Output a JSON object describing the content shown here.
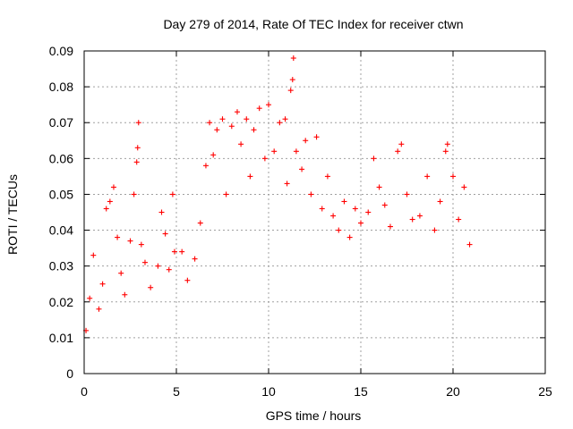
{
  "chart_data": {
    "type": "scatter",
    "title": "Day 279 of 2014, Rate Of TEC Index for receiver ctwn",
    "xlabel": "GPS time / hours",
    "ylabel": "ROTI / TECUs",
    "xlim": [
      0,
      25
    ],
    "ylim": [
      0,
      0.09
    ],
    "xticks": [
      "0",
      "5",
      "10",
      "15",
      "20",
      "25"
    ],
    "yticks": [
      "0",
      "0.01",
      "0.02",
      "0.03",
      "0.04",
      "0.05",
      "0.06",
      "0.07",
      "0.08",
      "0.09"
    ],
    "grid": true,
    "marker": "+",
    "colors": {
      "series": "#ff0000"
    },
    "series": [
      {
        "points": [
          [
            0.1,
            0.012
          ],
          [
            0.3,
            0.021
          ],
          [
            0.5,
            0.033
          ],
          [
            0.8,
            0.018
          ],
          [
            1.0,
            0.025
          ],
          [
            1.2,
            0.046
          ],
          [
            1.4,
            0.048
          ],
          [
            1.6,
            0.052
          ],
          [
            1.8,
            0.038
          ],
          [
            2.0,
            0.028
          ],
          [
            2.2,
            0.022
          ],
          [
            2.5,
            0.037
          ],
          [
            2.7,
            0.05
          ],
          [
            2.85,
            0.059
          ],
          [
            2.9,
            0.063
          ],
          [
            2.95,
            0.07
          ],
          [
            3.1,
            0.036
          ],
          [
            3.3,
            0.031
          ],
          [
            3.6,
            0.024
          ],
          [
            4.0,
            0.03
          ],
          [
            4.2,
            0.045
          ],
          [
            4.4,
            0.039
          ],
          [
            4.6,
            0.029
          ],
          [
            4.8,
            0.05
          ],
          [
            4.9,
            0.034
          ],
          [
            5.3,
            0.034
          ],
          [
            5.6,
            0.026
          ],
          [
            6.0,
            0.032
          ],
          [
            6.3,
            0.042
          ],
          [
            6.6,
            0.058
          ],
          [
            6.8,
            0.07
          ],
          [
            7.0,
            0.061
          ],
          [
            7.2,
            0.068
          ],
          [
            7.5,
            0.071
          ],
          [
            7.7,
            0.05
          ],
          [
            8.0,
            0.069
          ],
          [
            8.3,
            0.073
          ],
          [
            8.5,
            0.064
          ],
          [
            8.8,
            0.071
          ],
          [
            9.0,
            0.055
          ],
          [
            9.2,
            0.068
          ],
          [
            9.5,
            0.074
          ],
          [
            9.8,
            0.06
          ],
          [
            10.0,
            0.075
          ],
          [
            10.3,
            0.062
          ],
          [
            10.6,
            0.07
          ],
          [
            10.9,
            0.071
          ],
          [
            11.0,
            0.053
          ],
          [
            11.2,
            0.079
          ],
          [
            11.3,
            0.082
          ],
          [
            11.35,
            0.088
          ],
          [
            11.5,
            0.062
          ],
          [
            11.8,
            0.057
          ],
          [
            12.0,
            0.065
          ],
          [
            12.3,
            0.05
          ],
          [
            12.6,
            0.066
          ],
          [
            12.9,
            0.046
          ],
          [
            13.2,
            0.055
          ],
          [
            13.5,
            0.044
          ],
          [
            13.8,
            0.04
          ],
          [
            14.1,
            0.048
          ],
          [
            14.4,
            0.038
          ],
          [
            14.7,
            0.046
          ],
          [
            15.0,
            0.042
          ],
          [
            15.4,
            0.045
          ],
          [
            15.7,
            0.06
          ],
          [
            16.0,
            0.052
          ],
          [
            16.3,
            0.047
          ],
          [
            16.6,
            0.041
          ],
          [
            17.0,
            0.062
          ],
          [
            17.2,
            0.064
          ],
          [
            17.5,
            0.05
          ],
          [
            17.8,
            0.043
          ],
          [
            18.2,
            0.044
          ],
          [
            18.6,
            0.055
          ],
          [
            19.0,
            0.04
          ],
          [
            19.3,
            0.048
          ],
          [
            19.6,
            0.062
          ],
          [
            19.7,
            0.064
          ],
          [
            20.0,
            0.055
          ],
          [
            20.3,
            0.043
          ],
          [
            20.6,
            0.052
          ],
          [
            20.9,
            0.036
          ]
        ]
      }
    ]
  }
}
